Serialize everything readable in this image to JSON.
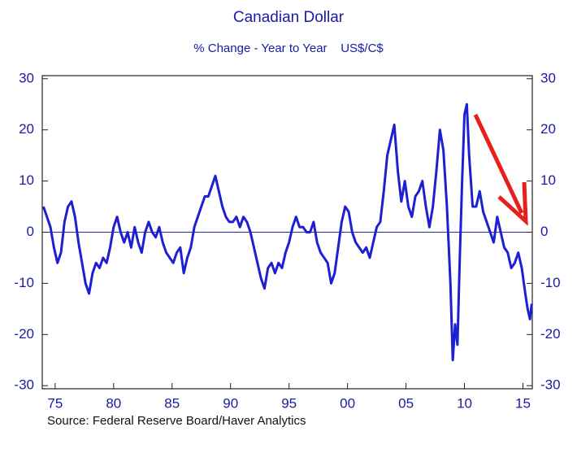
{
  "chart_data": {
    "type": "line",
    "title": "Canadian Dollar",
    "subtitle": "% Change - Year to Year    US$/C$",
    "source": "Source:  Federal Reserve Board/Haver Analytics",
    "color": "#1e1ed2",
    "zero_line": 0,
    "x": [
      1974.0,
      1974.3,
      1974.6,
      1974.9,
      1975.2,
      1975.5,
      1975.8,
      1976.1,
      1976.4,
      1976.7,
      1977.0,
      1977.3,
      1977.6,
      1977.9,
      1978.2,
      1978.5,
      1978.8,
      1979.1,
      1979.4,
      1979.7,
      1980.0,
      1980.3,
      1980.6,
      1980.9,
      1981.2,
      1981.5,
      1981.8,
      1982.1,
      1982.4,
      1982.7,
      1983.0,
      1983.3,
      1983.6,
      1983.9,
      1984.2,
      1984.5,
      1984.8,
      1985.1,
      1985.4,
      1985.7,
      1986.0,
      1986.3,
      1986.6,
      1986.9,
      1987.2,
      1987.5,
      1987.8,
      1988.1,
      1988.4,
      1988.7,
      1989.0,
      1989.3,
      1989.6,
      1989.9,
      1990.2,
      1990.5,
      1990.8,
      1991.1,
      1991.4,
      1991.7,
      1992.0,
      1992.3,
      1992.6,
      1992.9,
      1993.2,
      1993.5,
      1993.8,
      1994.1,
      1994.4,
      1994.7,
      1995.0,
      1995.3,
      1995.6,
      1995.9,
      1996.2,
      1996.5,
      1996.8,
      1997.1,
      1997.4,
      1997.7,
      1998.0,
      1998.3,
      1998.6,
      1998.9,
      1999.2,
      1999.5,
      1999.8,
      2000.1,
      2000.4,
      2000.7,
      2001.0,
      2001.3,
      2001.6,
      2001.9,
      2002.2,
      2002.5,
      2002.8,
      2003.1,
      2003.4,
      2003.7,
      2004.0,
      2004.3,
      2004.6,
      2004.9,
      2005.2,
      2005.5,
      2005.8,
      2006.1,
      2006.4,
      2006.7,
      2007.0,
      2007.3,
      2007.6,
      2007.9,
      2008.2,
      2008.5,
      2008.8,
      2009.0,
      2009.2,
      2009.4,
      2009.6,
      2009.8,
      2010.0,
      2010.2,
      2010.4,
      2010.7,
      2011.0,
      2011.3,
      2011.6,
      2011.9,
      2012.2,
      2012.5,
      2012.8,
      2013.1,
      2013.4,
      2013.7,
      2014.0,
      2014.3,
      2014.6,
      2014.9,
      2015.2,
      2015.4,
      2015.6,
      2015.75
    ],
    "values": [
      5,
      3,
      1,
      -3,
      -6,
      -4,
      2,
      5,
      6,
      3,
      -2,
      -6,
      -10,
      -12,
      -8,
      -6,
      -7,
      -5,
      -6,
      -3,
      1,
      3,
      0,
      -2,
      0,
      -3,
      1,
      -2,
      -4,
      0,
      2,
      0,
      -1,
      1,
      -2,
      -4,
      -5,
      -6,
      -4,
      -3,
      -8,
      -5,
      -3,
      1,
      3,
      5,
      7,
      7,
      9,
      11,
      8,
      5,
      3,
      2,
      2,
      3,
      1,
      3,
      2,
      0,
      -3,
      -6,
      -9,
      -11,
      -7,
      -6,
      -8,
      -6,
      -7,
      -4,
      -2,
      1,
      3,
      1,
      1,
      0,
      0,
      2,
      -2,
      -4,
      -5,
      -6,
      -10,
      -8,
      -3,
      2,
      5,
      4,
      0,
      -2,
      -3,
      -4,
      -3,
      -5,
      -2,
      1,
      2,
      8,
      15,
      18,
      21,
      12,
      6,
      10,
      5,
      3,
      7,
      8,
      10,
      5,
      1,
      5,
      12,
      20,
      16,
      5,
      -10,
      -25,
      -18,
      -22,
      -5,
      10,
      23,
      25,
      15,
      5,
      5,
      8,
      4,
      2,
      0,
      -2,
      3,
      0,
      -3,
      -4,
      -7,
      -6,
      -4,
      -7,
      -12,
      -15,
      -17,
      -14
    ],
    "xlim": [
      1973.9,
      2015.8
    ],
    "xticks": [
      {
        "value": 1975,
        "label": "75"
      },
      {
        "value": 1980,
        "label": "80"
      },
      {
        "value": 1985,
        "label": "85"
      },
      {
        "value": 1990,
        "label": "90"
      },
      {
        "value": 1995,
        "label": "95"
      },
      {
        "value": 2000,
        "label": "00"
      },
      {
        "value": 2005,
        "label": "05"
      },
      {
        "value": 2010,
        "label": "10"
      },
      {
        "value": 2015,
        "label": "15"
      }
    ],
    "ylim": [
      -30.6,
      30.6
    ],
    "yticks": [
      -30,
      -20,
      -10,
      0,
      10,
      20,
      30
    ],
    "y2lim": [
      -30.6,
      30.6
    ],
    "y2ticks": [
      -30,
      -20,
      -10,
      0,
      10,
      20,
      30
    ]
  }
}
